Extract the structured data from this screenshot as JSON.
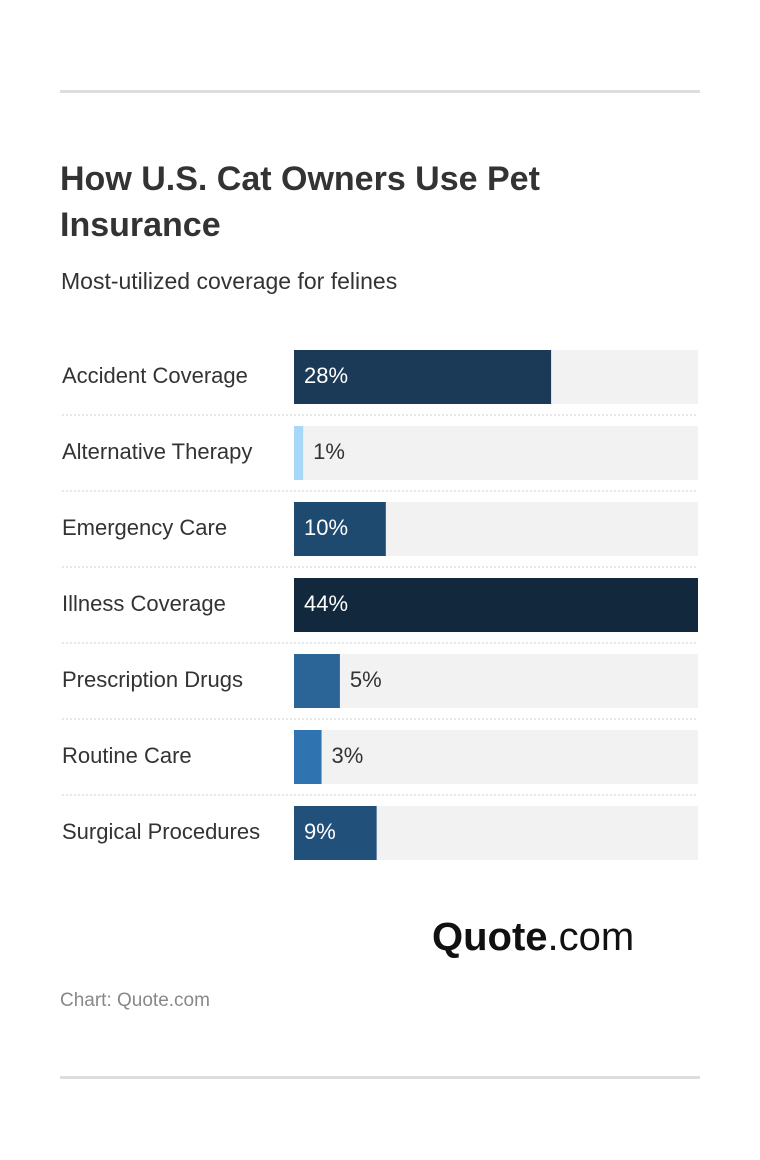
{
  "chart_data": {
    "type": "bar",
    "orientation": "horizontal",
    "title": "How U.S. Cat Owners Use Pet Insurance",
    "subtitle": "Most-utilized coverage for felines",
    "categories": [
      "Accident Coverage",
      "Alternative Therapy",
      "Emergency Care",
      "Illness Coverage",
      "Prescription Drugs",
      "Routine Care",
      "Surgical Procedures"
    ],
    "values": [
      28,
      1,
      10,
      44,
      5,
      3,
      9
    ],
    "value_labels": [
      "28%",
      "1%",
      "10%",
      "44%",
      "5%",
      "3%",
      "9%"
    ],
    "colors": [
      "#1b3a57",
      "#a8d8f8",
      "#1e4a70",
      "#12283d",
      "#2b6496",
      "#2f73b0",
      "#21507a"
    ],
    "xlim": [
      0,
      44
    ],
    "source": "Chart: Quote.com",
    "logo": {
      "bold": "Quote",
      "regular": ".com"
    }
  }
}
